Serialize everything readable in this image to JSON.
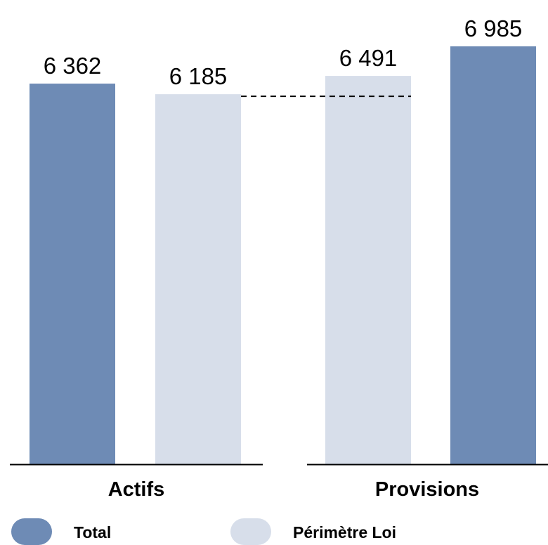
{
  "chart_data": {
    "type": "bar",
    "groups": [
      {
        "category": "Actifs",
        "bars": [
          {
            "series": "Total",
            "value": 6362,
            "label": "6 362"
          },
          {
            "series": "Périmètre Loi",
            "value": 6185,
            "label": "6 185"
          }
        ]
      },
      {
        "category": "Provisions",
        "bars": [
          {
            "series": "Périmètre Loi",
            "value": 6491,
            "label": "6 491"
          },
          {
            "series": "Total",
            "value": 6985,
            "label": "6 985"
          }
        ]
      }
    ],
    "series": [
      {
        "name": "Total",
        "color": "#6e8bb5"
      },
      {
        "name": "Périmètre Loi",
        "color": "#d7deea"
      }
    ],
    "reference_line": {
      "value": 6185,
      "style": "dashed"
    },
    "ylim": [
      0,
      7200
    ],
    "grid": false,
    "legend_position": "bottom",
    "title": "",
    "xlabel": "",
    "ylabel": ""
  }
}
